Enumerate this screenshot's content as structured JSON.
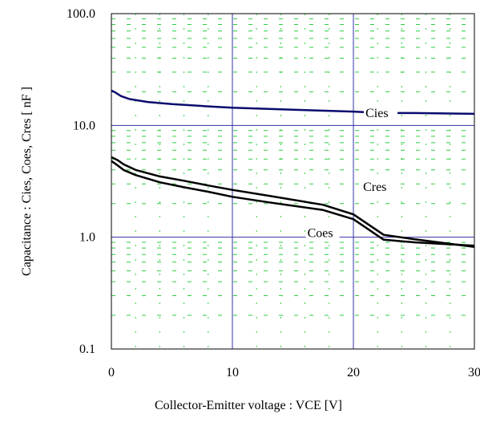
{
  "chart_data": {
    "type": "line",
    "title": "",
    "xlabel": "Collector-Emitter voltage : VCE [V]",
    "ylabel": "Capacitance : Cies, Coes, Cres [ nF ]",
    "xlim": [
      0,
      30
    ],
    "ylim": [
      0.1,
      100
    ],
    "yscale": "log",
    "xticks": [
      "0",
      "10",
      "20",
      "30"
    ],
    "yticks": [
      "0.1",
      "1.0",
      "10.0",
      "100.0"
    ],
    "grid": true,
    "series": [
      {
        "name": "Cies",
        "color": "#0a0a6e",
        "x": [
          0,
          0.3,
          0.8,
          1.5,
          3,
          5,
          8,
          10,
          15,
          20,
          22.5,
          25,
          30
        ],
        "y": [
          20.5,
          19.8,
          18.3,
          17.2,
          16.2,
          15.5,
          14.8,
          14.4,
          13.8,
          13.3,
          12.9,
          12.9,
          12.7
        ]
      },
      {
        "name": "Cres",
        "color": "#000000",
        "x": [
          0,
          0.5,
          1,
          2,
          4,
          6,
          8,
          10,
          13,
          17.5,
          20,
          22.5,
          25,
          30
        ],
        "y": [
          5.2,
          4.9,
          4.5,
          4.0,
          3.5,
          3.2,
          2.9,
          2.65,
          2.35,
          1.95,
          1.6,
          1.05,
          0.96,
          0.82
        ]
      },
      {
        "name": "Coes",
        "color": "#000000",
        "x": [
          0,
          0.5,
          1,
          2,
          4,
          6,
          8,
          10,
          13,
          17.5,
          20,
          22.5,
          25,
          30
        ],
        "y": [
          4.8,
          4.4,
          4.0,
          3.6,
          3.1,
          2.8,
          2.55,
          2.3,
          2.05,
          1.75,
          1.45,
          0.95,
          0.9,
          0.84
        ]
      }
    ],
    "annotations": [
      {
        "text": "Cies",
        "x": 21,
        "y": 11.9
      },
      {
        "text": "Cres",
        "x": 20.8,
        "y": 2.6
      },
      {
        "text": "Coes",
        "x": 16.2,
        "y": 1.0
      }
    ]
  }
}
